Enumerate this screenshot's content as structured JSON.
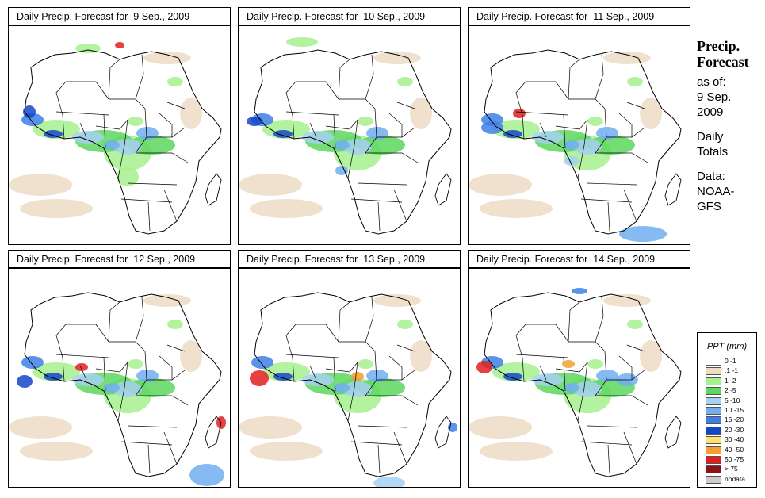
{
  "panels": [
    {
      "title": "Daily Precip. Forecast for  9 Sep., 2009"
    },
    {
      "title": "Daily Precip. Forecast for  10 Sep., 2009"
    },
    {
      "title": "Daily Precip. Forecast for  11 Sep., 2009"
    },
    {
      "title": "Daily Precip. Forecast for  12 Sep., 2009"
    },
    {
      "title": "Daily Precip. Forecast for  13 Sep., 2009"
    },
    {
      "title": "Daily Precip. Forecast for  14 Sep., 2009"
    }
  ],
  "sidebar": {
    "heading_1": "Precip.",
    "heading_2": "Forecast",
    "asof_1": "as of:",
    "asof_2": "9 Sep.",
    "asof_3": "2009",
    "totals_1": "Daily",
    "totals_2": "Totals",
    "data_1": "Data:",
    "data_2": "NOAA-",
    "data_3": "GFS"
  },
  "legend": {
    "title": "PPT (mm)",
    "items": [
      {
        "label": "0 -1",
        "color": "#ffffff"
      },
      {
        "label": ".1 -1",
        "color": "#ecdcc4"
      },
      {
        "label": "1 -2",
        "color": "#a6f08e"
      },
      {
        "label": "2 -5",
        "color": "#5dd75d"
      },
      {
        "label": "5 -10",
        "color": "#a6d0f2"
      },
      {
        "label": "10 -15",
        "color": "#71aef0"
      },
      {
        "label": "15 -20",
        "color": "#3e7fe6"
      },
      {
        "label": "20 -30",
        "color": "#1446c8"
      },
      {
        "label": "30 -40",
        "color": "#ffe070"
      },
      {
        "label": "40 -50",
        "color": "#f3a030"
      },
      {
        "label": "50 -75",
        "color": "#e02020"
      },
      {
        "label": "> 75",
        "color": "#8c1414"
      },
      {
        "label": "nodata",
        "color": "#cccccc"
      }
    ]
  }
}
